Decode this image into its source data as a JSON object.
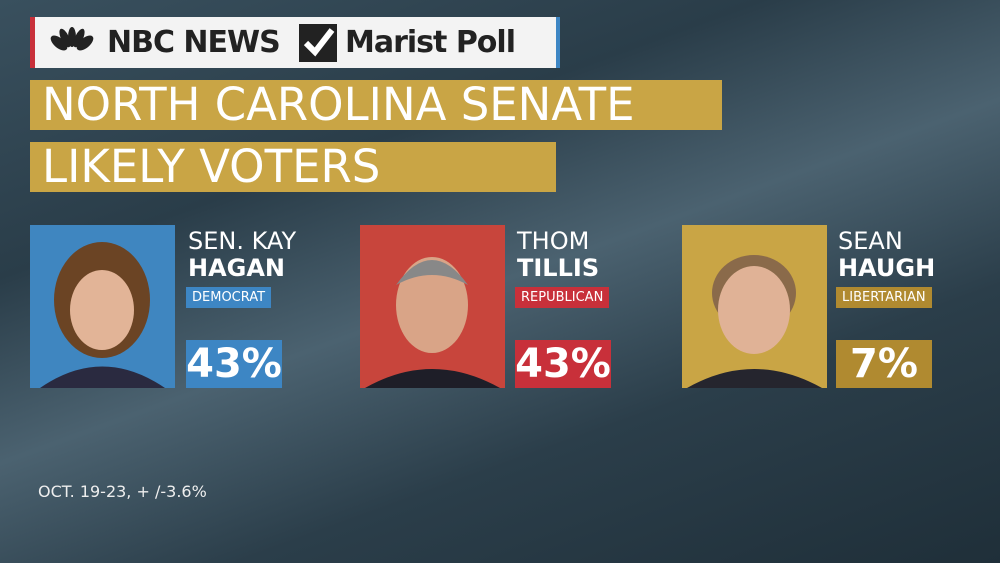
{
  "header": {
    "network": "NBC NEWS",
    "pollster": "Marist Poll"
  },
  "title": {
    "line1": "NORTH CAROLINA SENATE",
    "line2": "LIKELY VOTERS"
  },
  "candidates": [
    {
      "first_line": "SEN. KAY",
      "last_name": "HAGAN",
      "party": "Democrat",
      "percent": "43%"
    },
    {
      "first_line": "THOM",
      "last_name": "TILLIS",
      "party": "Republican",
      "percent": "43%"
    },
    {
      "first_line": "SEAN",
      "last_name": "HAUGH",
      "party": "Libertarian",
      "percent": "7%"
    }
  ],
  "footnote": "OCT. 19-23, + /-3.6%"
}
